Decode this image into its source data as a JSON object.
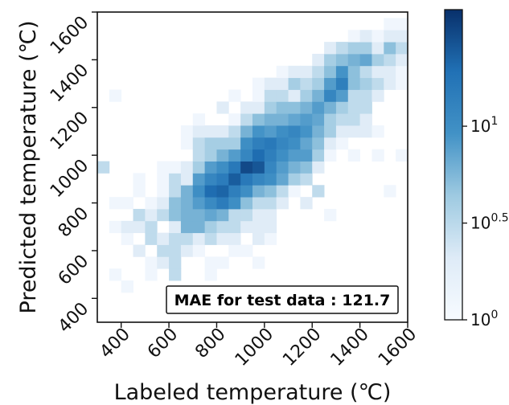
{
  "chart_data": {
    "type": "heatmap",
    "xlabel": "Labeled temperature (℃)",
    "ylabel": "Predicted temperature (℃)",
    "xlim": [
      300,
      1600
    ],
    "ylim": [
      300,
      1600
    ],
    "x_ticks": [
      "400",
      "600",
      "800",
      "1000",
      "1200",
      "1400",
      "1600"
    ],
    "y_ticks": [
      "400",
      "600",
      "800",
      "1000",
      "1200",
      "1400",
      "1600"
    ],
    "bin_width": 50,
    "annotation": "MAE for test data : 121.7",
    "colorbar": {
      "scale": "log",
      "range": [
        1,
        40
      ],
      "tick_labels": [
        {
          "base": "10",
          "exp": "0",
          "value": 1
        },
        {
          "base": "10",
          "exp": "0.5",
          "value": 3.16
        },
        {
          "base": "10",
          "exp": "1",
          "value": 10
        }
      ]
    },
    "grid": false,
    "cells": [
      [
        325,
        950,
        3
      ],
      [
        375,
        500,
        1
      ],
      [
        375,
        700,
        1
      ],
      [
        375,
        800,
        1
      ],
      [
        375,
        1250,
        1
      ],
      [
        425,
        650,
        1
      ],
      [
        425,
        700,
        2
      ],
      [
        425,
        800,
        1
      ],
      [
        425,
        450,
        1
      ],
      [
        475,
        600,
        2
      ],
      [
        475,
        700,
        2
      ],
      [
        475,
        750,
        3
      ],
      [
        475,
        850,
        1
      ],
      [
        475,
        900,
        1
      ],
      [
        525,
        550,
        1
      ],
      [
        525,
        650,
        3
      ],
      [
        525,
        700,
        3
      ],
      [
        525,
        750,
        2
      ],
      [
        525,
        800,
        1
      ],
      [
        525,
        500,
        1
      ],
      [
        575,
        550,
        2
      ],
      [
        575,
        600,
        3
      ],
      [
        575,
        650,
        2
      ],
      [
        575,
        750,
        3
      ],
      [
        575,
        800,
        2
      ],
      [
        575,
        850,
        1
      ],
      [
        575,
        900,
        1
      ],
      [
        575,
        950,
        1
      ],
      [
        625,
        500,
        3
      ],
      [
        625,
        550,
        3
      ],
      [
        625,
        600,
        3
      ],
      [
        625,
        650,
        3
      ],
      [
        625,
        700,
        2
      ],
      [
        625,
        750,
        5
      ],
      [
        625,
        800,
        5
      ],
      [
        625,
        850,
        3
      ],
      [
        625,
        900,
        3
      ],
      [
        625,
        950,
        1
      ],
      [
        675,
        600,
        2
      ],
      [
        675,
        650,
        3
      ],
      [
        675,
        700,
        6
      ],
      [
        675,
        750,
        6
      ],
      [
        675,
        800,
        6
      ],
      [
        675,
        850,
        6
      ],
      [
        675,
        900,
        2
      ],
      [
        675,
        950,
        2
      ],
      [
        675,
        1050,
        1
      ],
      [
        675,
        1100,
        1
      ],
      [
        725,
        600,
        1
      ],
      [
        725,
        650,
        2
      ],
      [
        725,
        700,
        6
      ],
      [
        725,
        750,
        6
      ],
      [
        725,
        800,
        8
      ],
      [
        725,
        850,
        10
      ],
      [
        725,
        900,
        8
      ],
      [
        725,
        950,
        4
      ],
      [
        725,
        1000,
        3
      ],
      [
        725,
        1050,
        3
      ],
      [
        725,
        1100,
        2
      ],
      [
        725,
        1150,
        1
      ],
      [
        775,
        500,
        1
      ],
      [
        775,
        550,
        1
      ],
      [
        775,
        650,
        3
      ],
      [
        775,
        700,
        4
      ],
      [
        775,
        750,
        7
      ],
      [
        775,
        800,
        11
      ],
      [
        775,
        850,
        20
      ],
      [
        775,
        900,
        12
      ],
      [
        775,
        950,
        8
      ],
      [
        775,
        1000,
        4
      ],
      [
        775,
        1050,
        4
      ],
      [
        775,
        1100,
        2
      ],
      [
        825,
        550,
        1
      ],
      [
        825,
        650,
        2
      ],
      [
        825,
        700,
        3
      ],
      [
        825,
        750,
        6
      ],
      [
        825,
        800,
        15
      ],
      [
        825,
        850,
        22
      ],
      [
        825,
        900,
        15
      ],
      [
        825,
        950,
        10
      ],
      [
        825,
        1000,
        6
      ],
      [
        825,
        1050,
        4
      ],
      [
        825,
        1100,
        2
      ],
      [
        825,
        1200,
        2
      ],
      [
        875,
        600,
        1
      ],
      [
        875,
        650,
        2
      ],
      [
        875,
        700,
        3
      ],
      [
        875,
        750,
        3
      ],
      [
        875,
        800,
        10
      ],
      [
        875,
        850,
        14
      ],
      [
        875,
        900,
        24
      ],
      [
        875,
        950,
        16
      ],
      [
        875,
        1000,
        8
      ],
      [
        875,
        1050,
        4
      ],
      [
        875,
        1100,
        3
      ],
      [
        875,
        1150,
        1
      ],
      [
        875,
        1250,
        1
      ],
      [
        925,
        600,
        1
      ],
      [
        925,
        700,
        2
      ],
      [
        925,
        750,
        3
      ],
      [
        925,
        800,
        5
      ],
      [
        925,
        850,
        10
      ],
      [
        925,
        900,
        16
      ],
      [
        925,
        950,
        30
      ],
      [
        925,
        1000,
        12
      ],
      [
        925,
        1050,
        10
      ],
      [
        925,
        1100,
        6
      ],
      [
        925,
        1150,
        3
      ],
      [
        925,
        1200,
        2
      ],
      [
        975,
        650,
        2
      ],
      [
        975,
        700,
        2
      ],
      [
        975,
        750,
        2
      ],
      [
        975,
        800,
        3
      ],
      [
        975,
        850,
        6
      ],
      [
        975,
        900,
        12
      ],
      [
        975,
        950,
        26
      ],
      [
        975,
        1000,
        20
      ],
      [
        975,
        1050,
        14
      ],
      [
        975,
        1100,
        9
      ],
      [
        975,
        1150,
        5
      ],
      [
        975,
        1200,
        2
      ],
      [
        975,
        1250,
        1
      ],
      [
        975,
        1300,
        1
      ],
      [
        975,
        550,
        1
      ],
      [
        1025,
        650,
        1
      ],
      [
        1025,
        700,
        2
      ],
      [
        1025,
        750,
        2
      ],
      [
        1025,
        800,
        3
      ],
      [
        1025,
        850,
        5
      ],
      [
        1025,
        900,
        10
      ],
      [
        1025,
        950,
        12
      ],
      [
        1025,
        1000,
        14
      ],
      [
        1025,
        1050,
        16
      ],
      [
        1025,
        1100,
        8
      ],
      [
        1025,
        1150,
        6
      ],
      [
        1025,
        1200,
        4
      ],
      [
        1025,
        1250,
        3
      ],
      [
        1025,
        1300,
        2
      ],
      [
        1075,
        800,
        2
      ],
      [
        1075,
        850,
        3
      ],
      [
        1075,
        900,
        7
      ],
      [
        1075,
        950,
        8
      ],
      [
        1075,
        1000,
        10
      ],
      [
        1075,
        1050,
        12
      ],
      [
        1075,
        1100,
        10
      ],
      [
        1075,
        1150,
        6
      ],
      [
        1075,
        1200,
        5
      ],
      [
        1075,
        1250,
        3
      ],
      [
        1075,
        1300,
        2
      ],
      [
        1075,
        1350,
        1
      ],
      [
        1125,
        850,
        1
      ],
      [
        1125,
        900,
        4
      ],
      [
        1125,
        950,
        6
      ],
      [
        1125,
        1000,
        8
      ],
      [
        1125,
        1050,
        10
      ],
      [
        1125,
        1100,
        12
      ],
      [
        1125,
        1150,
        7
      ],
      [
        1125,
        1200,
        5
      ],
      [
        1125,
        1250,
        2
      ],
      [
        1125,
        1300,
        4
      ],
      [
        1125,
        1350,
        2
      ],
      [
        1175,
        800,
        2
      ],
      [
        1175,
        900,
        3
      ],
      [
        1175,
        950,
        5
      ],
      [
        1175,
        1000,
        8
      ],
      [
        1175,
        1050,
        7
      ],
      [
        1175,
        1100,
        9
      ],
      [
        1175,
        1150,
        8
      ],
      [
        1175,
        1200,
        6
      ],
      [
        1175,
        1250,
        4
      ],
      [
        1175,
        1300,
        3
      ],
      [
        1175,
        1350,
        2
      ],
      [
        1225,
        850,
        3
      ],
      [
        1225,
        950,
        2
      ],
      [
        1225,
        1000,
        4
      ],
      [
        1225,
        1050,
        5
      ],
      [
        1225,
        1100,
        6
      ],
      [
        1225,
        1150,
        7
      ],
      [
        1225,
        1200,
        8
      ],
      [
        1225,
        1250,
        6
      ],
      [
        1225,
        1300,
        4
      ],
      [
        1225,
        1350,
        3
      ],
      [
        1225,
        1400,
        2
      ],
      [
        1275,
        1000,
        1
      ],
      [
        1275,
        1050,
        2
      ],
      [
        1275,
        1100,
        4
      ],
      [
        1275,
        1150,
        4
      ],
      [
        1275,
        1200,
        6
      ],
      [
        1275,
        1250,
        12
      ],
      [
        1275,
        1300,
        8
      ],
      [
        1275,
        1350,
        5
      ],
      [
        1275,
        1400,
        4
      ],
      [
        1275,
        1450,
        2
      ],
      [
        1275,
        750,
        1
      ],
      [
        1325,
        1050,
        1
      ],
      [
        1325,
        1100,
        2
      ],
      [
        1325,
        1150,
        3
      ],
      [
        1325,
        1200,
        4
      ],
      [
        1325,
        1250,
        8
      ],
      [
        1325,
        1300,
        14
      ],
      [
        1325,
        1350,
        9
      ],
      [
        1325,
        1400,
        5
      ],
      [
        1325,
        1450,
        3
      ],
      [
        1375,
        1000,
        1
      ],
      [
        1375,
        1100,
        2
      ],
      [
        1375,
        1150,
        3
      ],
      [
        1375,
        1200,
        3
      ],
      [
        1375,
        1250,
        3
      ],
      [
        1375,
        1300,
        5
      ],
      [
        1375,
        1350,
        5
      ],
      [
        1375,
        1400,
        6
      ],
      [
        1375,
        1450,
        4
      ],
      [
        1375,
        1500,
        1
      ],
      [
        1425,
        1100,
        2
      ],
      [
        1425,
        1150,
        2
      ],
      [
        1425,
        1200,
        3
      ],
      [
        1425,
        1250,
        3
      ],
      [
        1425,
        1300,
        4
      ],
      [
        1425,
        1350,
        3
      ],
      [
        1425,
        1400,
        7
      ],
      [
        1425,
        1450,
        4
      ],
      [
        1425,
        1500,
        2
      ],
      [
        1475,
        1000,
        1
      ],
      [
        1475,
        1100,
        1
      ],
      [
        1475,
        1250,
        2
      ],
      [
        1475,
        1300,
        3
      ],
      [
        1475,
        1350,
        2
      ],
      [
        1475,
        1400,
        4
      ],
      [
        1475,
        1450,
        2
      ],
      [
        1475,
        1500,
        1
      ],
      [
        1525,
        850,
        1
      ],
      [
        1525,
        1300,
        2
      ],
      [
        1525,
        1350,
        2
      ],
      [
        1525,
        1400,
        3
      ],
      [
        1525,
        1450,
        5
      ],
      [
        1525,
        1500,
        2
      ],
      [
        1525,
        1550,
        1
      ],
      [
        1575,
        1000,
        1
      ],
      [
        1575,
        1300,
        1
      ],
      [
        1575,
        1350,
        1
      ],
      [
        1575,
        1400,
        2
      ],
      [
        1575,
        1450,
        3
      ],
      [
        1575,
        1500,
        2
      ],
      [
        1575,
        1550,
        1
      ]
    ]
  }
}
